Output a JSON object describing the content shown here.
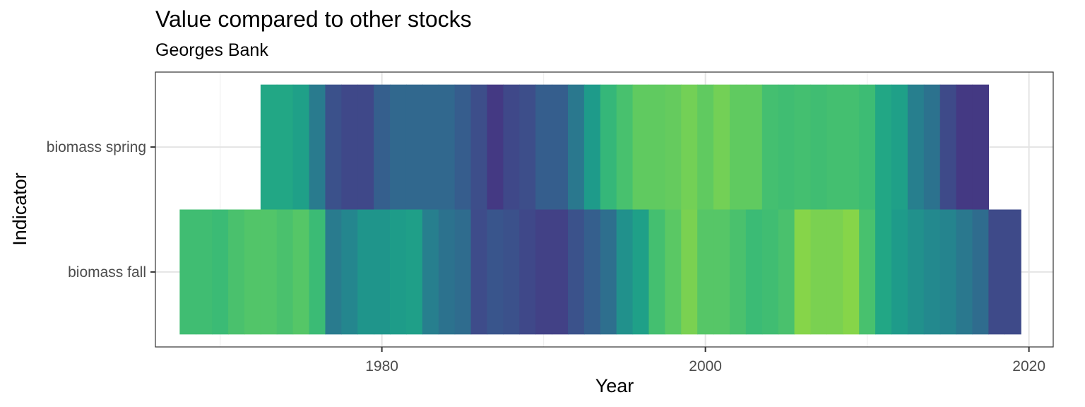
{
  "chart_data": {
    "type": "heatmap",
    "title": "Value compared to other stocks",
    "subtitle": "Georges Bank",
    "xlabel": "Year",
    "ylabel": "Indicator",
    "xlim": [
      1966,
      2021.5
    ],
    "x_ticks": [
      1980,
      2000,
      2020
    ],
    "x_minor_ticks": [
      1970,
      1990,
      2010
    ],
    "grid": true,
    "legend": "none",
    "series": [
      {
        "name": "biomass fall",
        "start_year": 1968,
        "colors": [
          "#40bd72",
          "#40bd72",
          "#3bbb75",
          "#4ac16d",
          "#52c569",
          "#52c569",
          "#4ac16d",
          "#55c667",
          "#3bbb75",
          "#297b8e",
          "#24868e",
          "#1f958b",
          "#1f958b",
          "#1e9c89",
          "#1f9f88",
          "#277f8e",
          "#2c728e",
          "#2f6c8e",
          "#3e4c8a",
          "#39558c",
          "#3b518b",
          "#3f4889",
          "#424186",
          "#424186",
          "#3b528b",
          "#355f8d",
          "#2e6f8e",
          "#21918c",
          "#1fa088",
          "#44bf70",
          "#5ac864",
          "#7ad151",
          "#56c667",
          "#56c667",
          "#4ac16d",
          "#3bbb75",
          "#40bd72",
          "#4ac16d",
          "#86d549",
          "#7ad151",
          "#7ad151",
          "#86d549",
          "#48c16e",
          "#22a785",
          "#1e9b8a",
          "#21918c",
          "#23898e",
          "#25848e",
          "#2a788e",
          "#2f6c8e",
          "#3e4a89",
          "#3e4a89"
        ]
      },
      {
        "name": "biomass spring",
        "start_year": 1973,
        "colors": [
          "#22a785",
          "#22a785",
          "#1fa088",
          "#297b8e",
          "#3b518b",
          "#3f4889",
          "#3f4889",
          "#355f8d",
          "#31688e",
          "#31688e",
          "#31688e",
          "#31688e",
          "#365d8d",
          "#3d4e8a",
          "#443983",
          "#3f4889",
          "#3d4e8a",
          "#355e8d",
          "#355e8d",
          "#2a788e",
          "#1e9b8a",
          "#35b779",
          "#48c16e",
          "#60ca60",
          "#60ca60",
          "#65cb5e",
          "#73d056",
          "#60ca60",
          "#73d056",
          "#60ca60",
          "#60ca60",
          "#44bf70",
          "#40bd72",
          "#44bf70",
          "#40bd72",
          "#44bf70",
          "#44bf70",
          "#3dbc74",
          "#22a785",
          "#1fa088",
          "#277f8e",
          "#2c728e",
          "#3e4a89",
          "#443983",
          "#443983"
        ]
      }
    ]
  }
}
